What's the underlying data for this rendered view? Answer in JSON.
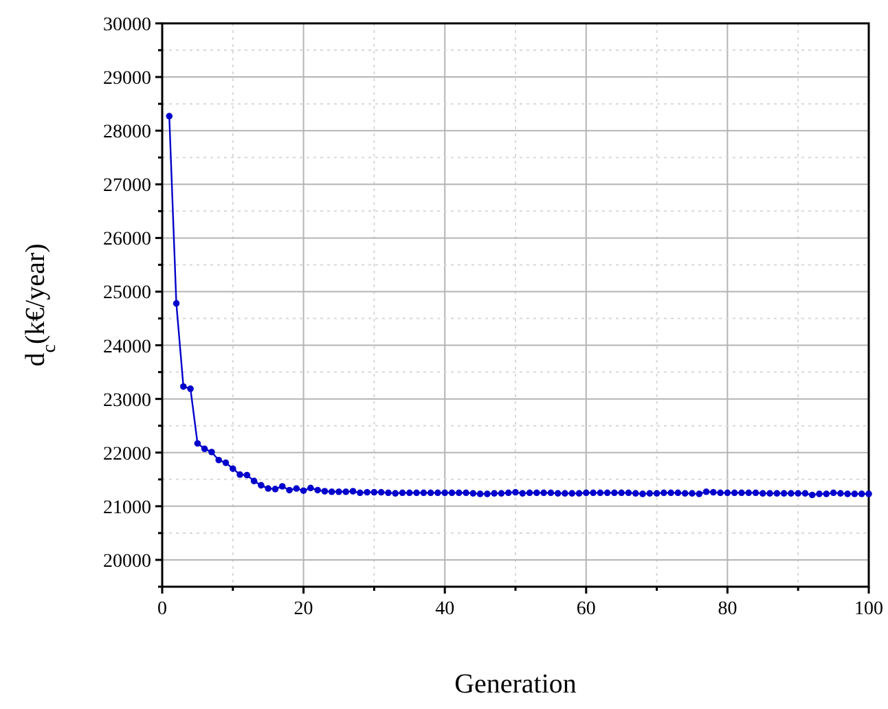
{
  "chart_data": {
    "type": "line",
    "xlabel": "Generation",
    "ylabel": "d$_{c}$(k€/year)",
    "x": [
      1,
      2,
      3,
      4,
      5,
      6,
      7,
      8,
      9,
      10,
      11,
      12,
      13,
      14,
      15,
      16,
      17,
      18,
      19,
      20,
      21,
      22,
      23,
      24,
      25,
      26,
      27,
      28,
      29,
      30,
      31,
      32,
      33,
      34,
      35,
      36,
      37,
      38,
      39,
      40,
      41,
      42,
      43,
      44,
      45,
      46,
      47,
      48,
      49,
      50,
      51,
      52,
      53,
      54,
      55,
      56,
      57,
      58,
      59,
      60,
      61,
      62,
      63,
      64,
      65,
      66,
      67,
      68,
      69,
      70,
      71,
      72,
      73,
      74,
      75,
      76,
      77,
      78,
      79,
      80,
      81,
      82,
      83,
      84,
      85,
      86,
      87,
      88,
      89,
      90,
      91,
      92,
      93,
      94,
      95,
      96,
      97,
      98,
      99,
      100
    ],
    "series": [
      {
        "color": "#0000cc",
        "values": [
          28270,
          24780,
          23230,
          23190,
          22170,
          22070,
          22010,
          21860,
          21810,
          21700,
          21590,
          21580,
          21470,
          21390,
          21330,
          21320,
          21370,
          21300,
          21330,
          21290,
          21340,
          21300,
          21280,
          21270,
          21270,
          21270,
          21280,
          21250,
          21260,
          21260,
          21260,
          21250,
          21240,
          21250,
          21250,
          21250,
          21250,
          21250,
          21250,
          21250,
          21250,
          21250,
          21250,
          21240,
          21230,
          21230,
          21240,
          21240,
          21250,
          21260,
          21240,
          21250,
          21250,
          21250,
          21250,
          21240,
          21240,
          21240,
          21240,
          21250,
          21250,
          21250,
          21250,
          21250,
          21250,
          21250,
          21240,
          21230,
          21240,
          21240,
          21250,
          21250,
          21250,
          21240,
          21240,
          21230,
          21270,
          21260,
          21250,
          21250,
          21250,
          21250,
          21250,
          21250,
          21240,
          21240,
          21240,
          21240,
          21240,
          21240,
          21240,
          21210,
          21230,
          21230,
          21250,
          21240,
          21230,
          21230,
          21230,
          21230
        ]
      }
    ],
    "xlim": [
      0,
      100
    ],
    "ylim": [
      19500,
      30000
    ],
    "xticks": [
      0,
      {
        "value": 10,
        "label": null
      },
      20,
      {
        "value": 30,
        "label": null
      },
      40,
      {
        "value": 50,
        "label": null
      },
      60,
      {
        "value": 70,
        "label": null
      },
      80,
      {
        "value": 90,
        "label": null
      },
      100
    ],
    "yticks": [
      {
        "value": 19500,
        "label": null
      },
      20000,
      {
        "value": 20500,
        "label": null
      },
      21000,
      {
        "value": 21500,
        "label": null
      },
      22000,
      {
        "value": 22500,
        "label": null
      },
      23000,
      {
        "value": 23500,
        "label": null
      },
      24000,
      {
        "value": 24500,
        "label": null
      },
      25000,
      {
        "value": 25500,
        "label": null
      },
      26000,
      {
        "value": 26500,
        "label": null
      },
      27000,
      {
        "value": 27500,
        "label": null
      },
      28000,
      {
        "value": 28500,
        "label": null
      },
      29000,
      {
        "value": 29500,
        "label": null
      },
      30000
    ],
    "grid": true,
    "marker": "circle",
    "line_style": "solid"
  }
}
